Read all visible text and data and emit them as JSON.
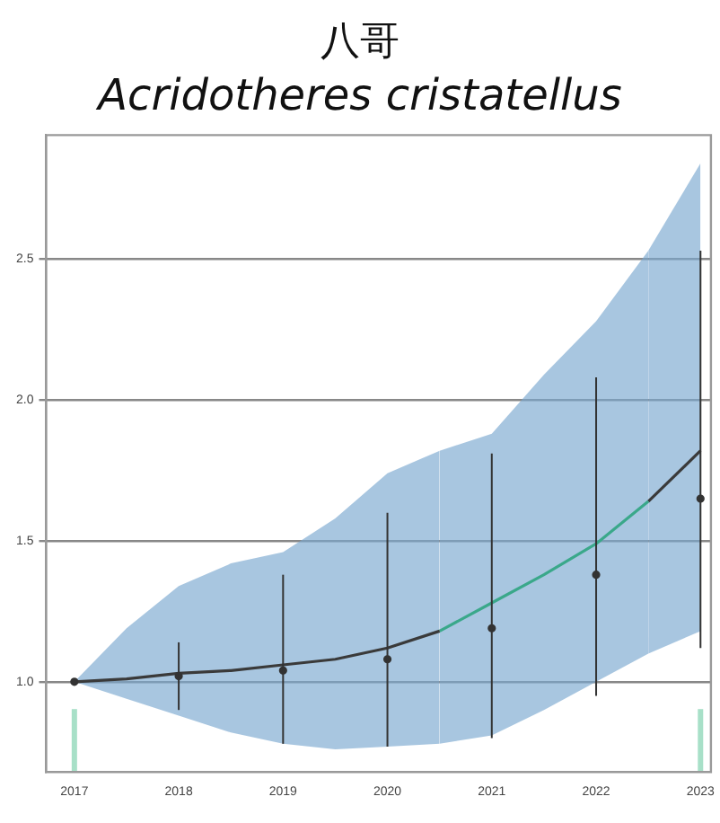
{
  "chart_data": {
    "type": "line",
    "title": "八哥",
    "subtitle": "Acridotheres cristatellus",
    "xlim": [
      2016.73,
      2023.1
    ],
    "xticks": [
      2017,
      2018,
      2019,
      2020,
      2021,
      2022,
      2023
    ],
    "ylim": [
      0.68,
      2.94
    ],
    "yticks": [
      {
        "value": 1,
        "label": "1.0"
      },
      {
        "value": 1.5,
        "label": "1.5"
      },
      {
        "value": 2,
        "label": "2.0"
      },
      {
        "value": 2.5,
        "label": "2.5"
      }
    ],
    "grid": "y",
    "legend": false,
    "series": [
      {
        "type": "line",
        "color": "#3a3a3a",
        "x": [
          2017,
          2017.5,
          2018,
          2018.5,
          2019,
          2019.5,
          2020,
          2020.5
        ],
        "values": [
          1.0,
          1.01,
          1.03,
          1.04,
          1.06,
          1.08,
          1.12,
          1.18
        ],
        "lower": [
          1.0,
          0.94,
          0.88,
          0.82,
          0.78,
          0.76,
          0.77,
          0.78
        ],
        "upper": [
          1.0,
          1.19,
          1.34,
          1.42,
          1.46,
          1.58,
          1.74,
          1.82
        ]
      },
      {
        "type": "line",
        "color": "#3aa88a",
        "x": [
          2020.5,
          2021,
          2021.5,
          2022,
          2022.5
        ],
        "values": [
          1.18,
          1.28,
          1.38,
          1.49,
          1.64
        ],
        "lower": [
          0.78,
          0.81,
          0.9,
          1.0,
          1.1
        ],
        "upper": [
          1.82,
          1.88,
          2.09,
          2.28,
          2.53
        ]
      },
      {
        "type": "line",
        "color": "#3a3a3a",
        "x": [
          2022.5,
          2023
        ],
        "values": [
          1.64,
          1.82
        ],
        "lower": [
          1.1,
          1.18
        ],
        "upper": [
          2.53,
          2.84
        ]
      },
      {
        "type": "scatter",
        "color": "#333333",
        "marker": "circle",
        "x": [
          2017,
          2018,
          2019,
          2020,
          2021,
          2022,
          2023
        ],
        "values": [
          1.0,
          1.02,
          1.04,
          1.08,
          1.19,
          1.38,
          1.65
        ],
        "errors": [
          null,
          [
            0.9,
            1.14
          ],
          [
            0.78,
            1.38
          ],
          [
            0.77,
            1.6
          ],
          [
            0.8,
            1.81
          ],
          [
            0.95,
            2.08
          ],
          [
            1.12,
            2.53
          ]
        ]
      }
    ],
    "ref_lines": [
      {
        "axis": "x",
        "value": 2017,
        "color": "#a8e0c8"
      },
      {
        "axis": "x",
        "value": 2023,
        "color": "#a8e0c8"
      }
    ]
  }
}
